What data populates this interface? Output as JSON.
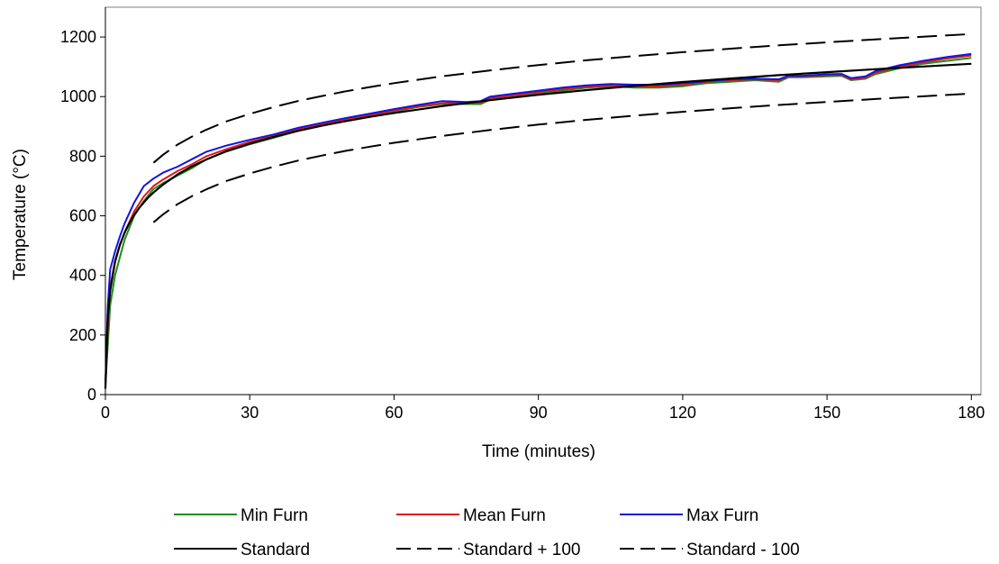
{
  "chart_data": {
    "type": "line",
    "title": "",
    "xlabel": "Time (minutes)",
    "ylabel": "Temperature (°C)",
    "xlim": [
      0,
      182
    ],
    "ylim": [
      0,
      1300
    ],
    "xticks": [
      0,
      30,
      60,
      90,
      120,
      150,
      180
    ],
    "xtick_labels": [
      "0",
      "30",
      "60",
      "90",
      "120",
      "150",
      "180"
    ],
    "yticks": [
      0,
      200,
      400,
      600,
      800,
      1000,
      1200
    ],
    "ytick_labels": [
      "0",
      "200",
      "400",
      "600",
      "800",
      "1000",
      "1200"
    ],
    "grid": false,
    "legend_position": "bottom",
    "series": [
      {
        "name": "Min Furn",
        "color": "#1e8c1e",
        "dash": "solid",
        "x": [
          0,
          0.5,
          1,
          2,
          3,
          4,
          5,
          6,
          8,
          10,
          12,
          15,
          18,
          21,
          25,
          30,
          35,
          40,
          45,
          50,
          55,
          60,
          65,
          70,
          75,
          78,
          80,
          85,
          90,
          95,
          100,
          105,
          110,
          115,
          120,
          125,
          130,
          135,
          140,
          142,
          145,
          150,
          153,
          155,
          158,
          160,
          165,
          170,
          175,
          180
        ],
        "y": [
          30,
          170,
          300,
          400,
          460,
          520,
          560,
          600,
          650,
          690,
          710,
          735,
          760,
          790,
          815,
          840,
          862,
          885,
          905,
          920,
          935,
          950,
          965,
          975,
          975,
          975,
          990,
          1000,
          1010,
          1020,
          1030,
          1035,
          1030,
          1030,
          1035,
          1045,
          1050,
          1055,
          1050,
          1065,
          1065,
          1068,
          1070,
          1055,
          1060,
          1075,
          1095,
          1110,
          1120,
          1130
        ]
      },
      {
        "name": "Mean Furn",
        "color": "#e01818",
        "dash": "solid",
        "x": [
          0,
          0.5,
          1,
          2,
          3,
          4,
          5,
          6,
          8,
          10,
          12,
          15,
          18,
          21,
          25,
          30,
          35,
          40,
          45,
          50,
          55,
          60,
          65,
          70,
          75,
          78,
          80,
          85,
          90,
          95,
          100,
          105,
          110,
          115,
          120,
          125,
          130,
          135,
          140,
          142,
          145,
          150,
          153,
          155,
          158,
          160,
          165,
          170,
          175,
          180
        ],
        "y": [
          30,
          230,
          360,
          450,
          500,
          545,
          580,
          615,
          665,
          700,
          722,
          750,
          773,
          800,
          823,
          848,
          868,
          890,
          908,
          923,
          938,
          953,
          967,
          978,
          978,
          980,
          995,
          1005,
          1015,
          1025,
          1033,
          1037,
          1035,
          1035,
          1040,
          1050,
          1055,
          1058,
          1055,
          1068,
          1068,
          1072,
          1073,
          1058,
          1064,
          1080,
          1100,
          1115,
          1128,
          1138
        ]
      },
      {
        "name": "Max Furn",
        "color": "#1414e0",
        "dash": "solid",
        "x": [
          0,
          0.5,
          1,
          2,
          3,
          4,
          5,
          6,
          8,
          10,
          12,
          15,
          18,
          21,
          25,
          30,
          35,
          40,
          45,
          50,
          55,
          60,
          65,
          70,
          75,
          78,
          80,
          85,
          90,
          95,
          100,
          105,
          110,
          115,
          120,
          125,
          130,
          135,
          140,
          142,
          145,
          150,
          153,
          155,
          158,
          160,
          165,
          170,
          175,
          180
        ],
        "y": [
          40,
          300,
          420,
          480,
          530,
          575,
          610,
          645,
          700,
          725,
          745,
          765,
          790,
          815,
          835,
          855,
          873,
          895,
          912,
          928,
          943,
          958,
          972,
          985,
          982,
          985,
          1000,
          1010,
          1020,
          1030,
          1038,
          1042,
          1040,
          1040,
          1045,
          1052,
          1058,
          1060,
          1058,
          1070,
          1070,
          1075,
          1076,
          1062,
          1068,
          1085,
          1105,
          1120,
          1133,
          1143
        ]
      },
      {
        "name": "Standard",
        "color": "#000000",
        "dash": "solid",
        "x": [
          0,
          0.5,
          1,
          2,
          3,
          4,
          5,
          6,
          7,
          8,
          9,
          10,
          12,
          15,
          18,
          21,
          25,
          30,
          35,
          40,
          45,
          50,
          55,
          60,
          70,
          80,
          90,
          100,
          110,
          120,
          130,
          140,
          150,
          160,
          170,
          180
        ],
        "y": [
          20,
          260,
          349,
          445,
          502,
          544,
          576,
          603,
          626,
          645,
          663,
          678,
          705,
          739,
          766,
          789,
          816,
          842,
          865,
          885,
          902,
          918,
          932,
          945,
          968,
          988,
          1006,
          1022,
          1036,
          1049,
          1061,
          1072,
          1082,
          1092,
          1101,
          1110
        ]
      },
      {
        "name": "Standard + 100",
        "color": "#000000",
        "dash": "long-dash",
        "x": [
          10,
          12,
          15,
          18,
          21,
          25,
          30,
          35,
          40,
          45,
          50,
          55,
          60,
          70,
          80,
          90,
          100,
          110,
          120,
          130,
          140,
          150,
          160,
          170,
          180
        ],
        "y": [
          778,
          805,
          839,
          866,
          889,
          916,
          942,
          965,
          985,
          1002,
          1018,
          1032,
          1045,
          1068,
          1088,
          1106,
          1122,
          1136,
          1149,
          1161,
          1172,
          1182,
          1192,
          1201,
          1210
        ]
      },
      {
        "name": "Standard - 100",
        "color": "#000000",
        "dash": "long-dash",
        "x": [
          10,
          12,
          15,
          18,
          21,
          25,
          30,
          35,
          40,
          45,
          50,
          55,
          60,
          70,
          80,
          90,
          100,
          110,
          120,
          130,
          140,
          150,
          160,
          170,
          180
        ],
        "y": [
          578,
          605,
          639,
          666,
          689,
          716,
          742,
          765,
          785,
          802,
          818,
          832,
          845,
          868,
          888,
          906,
          922,
          936,
          949,
          961,
          972,
          982,
          992,
          1001,
          1010
        ]
      }
    ]
  }
}
